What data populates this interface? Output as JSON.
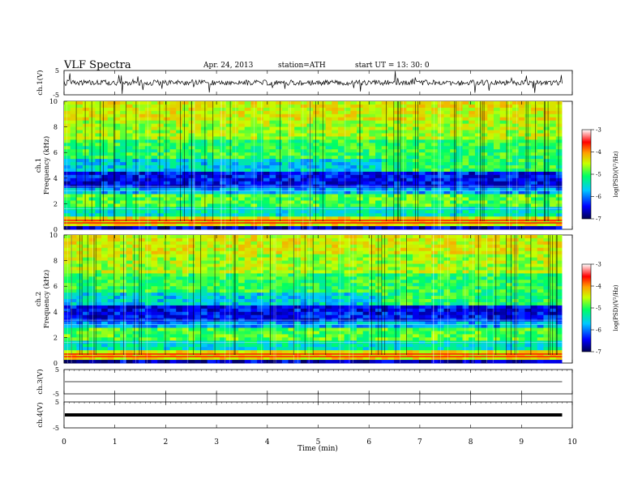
{
  "header": {
    "title": "VLF  Spectra",
    "date": "Apr. 24, 2013",
    "station": "station=ATH",
    "start": "start  UT  =   13: 30: 0"
  },
  "colors": {
    "spectrogram_scale": [
      "#000050",
      "#0000ff",
      "#00c8ff",
      "#00ff64",
      "#c8ff00",
      "#ffa000",
      "#ff0000",
      "#ffffff"
    ]
  },
  "chart_data": [
    {
      "type": "line",
      "name": "ch1-waveform",
      "ylabel": "ch.1(V)",
      "ylim": [
        -5,
        5
      ],
      "y_ticks": [
        "5",
        "-5"
      ],
      "xlim": [
        0,
        10
      ],
      "baseline": 0
    },
    {
      "type": "heatmap",
      "name": "ch1-spectrogram",
      "ylabel_channel": "ch.1",
      "ylabel": "Frequency  (kHz)",
      "ylim": [
        0,
        10
      ],
      "y_ticks": [
        "0",
        "2",
        "4",
        "6",
        "8",
        "10"
      ],
      "xlim": [
        0,
        10
      ],
      "data_end_min": 9.8,
      "colorbar": {
        "label": "log(PSD)(V²/Hz)",
        "range": [
          -7,
          -3
        ],
        "ticks": [
          "-3",
          "-4",
          "-5",
          "-6",
          "-7"
        ]
      }
    },
    {
      "type": "heatmap",
      "name": "ch2-spectrogram",
      "ylabel_channel": "ch.2",
      "ylabel": "Frequency  (kHz)",
      "ylim": [
        0,
        10
      ],
      "y_ticks": [
        "0",
        "2",
        "4",
        "6",
        "8",
        "10"
      ],
      "xlim": [
        0,
        10
      ],
      "data_end_min": 9.8,
      "colorbar": {
        "label": "log(PSD)(V²/Hz)",
        "range": [
          -7,
          -3
        ],
        "ticks": [
          "-3",
          "-4",
          "-5",
          "-6",
          "-7"
        ]
      }
    },
    {
      "type": "line",
      "name": "ch3-waveform",
      "ylabel": "ch.3(V)",
      "ylim": [
        -5,
        5
      ],
      "y_ticks": [
        "5",
        "-5"
      ],
      "xlim": [
        0,
        10
      ],
      "baseline": 0
    },
    {
      "type": "line",
      "name": "ch4-waveform",
      "ylabel": "ch.4(V)",
      "ylim": [
        -5,
        5
      ],
      "y_ticks": [
        "5",
        "-5"
      ],
      "xlim": [
        0,
        10
      ],
      "baseline": 0
    }
  ],
  "x_axis": {
    "label": "Time  (min)",
    "ticks": [
      "0",
      "1",
      "2",
      "3",
      "4",
      "5",
      "6",
      "7",
      "8",
      "9",
      "10"
    ]
  }
}
